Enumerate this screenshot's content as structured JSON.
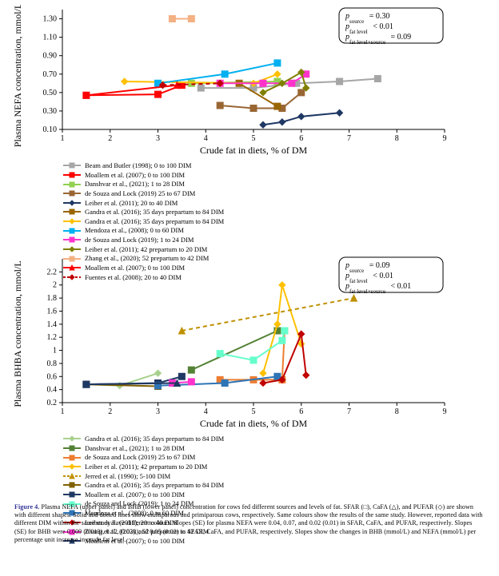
{
  "caption": {
    "lead": "Figure 4.",
    "text": " Plasma NEFA (upper panel) and BHB (lower panel) concentration for cows fed different sources and levels of fat. SFAR (□), CaFA (△), and PUFAR (◇) are shown with different shapes. Solid and dotted lines show multiparous and primiparous cows, respectively. Same colours show the results of the same study. However, reported data with different DIM within the same study have different colours. Slopes (SE) for plasma NEFA were 0.04, 0.07, and 0.02 (0.01) in SFAR, CaFA, and PUFAR, respectively. Slopes (SE) for BHB were 0.009 (0.013), 0.12 (0.03), and 0.05 (0.02) in SFAR, CaFA, and PUFAR, respectively. Slopes show the changes in BHB (mmol/L) and NEFA (mmol/L) per percentage unit increase in crude fat level."
  },
  "global": {
    "xlabel": "Crude fat in diets, % of DM",
    "xlabel_fontsize": 12,
    "tick_fontsize": 10,
    "axis_color": "#000000",
    "text_color": "#000000"
  },
  "panel_top": {
    "type": "line+marker",
    "ylabel": "Plasma NEFA concentration, mmol/L",
    "xlim": [
      1,
      9
    ],
    "ylim": [
      0.1,
      1.4
    ],
    "xticks": [
      1,
      2,
      3,
      4,
      5,
      6,
      7,
      8,
      9
    ],
    "yticks": [
      0.1,
      0.3,
      0.5,
      0.7,
      0.9,
      1.1,
      1.3
    ],
    "ytick_labels": [
      "0.10",
      "0.30",
      "0.50",
      "0.70",
      "0.90",
      "1.10",
      "1.30"
    ],
    "statbox": {
      "lines": [
        {
          "label_html": "<i>p</i><sub>source</sub>",
          "value": "= 0.30"
        },
        {
          "label_html": "<i>p</i><sub>fat level</sub>",
          "value": "< 0.01"
        },
        {
          "label_html": "<i>p</i><sub>fat level×source</sub>",
          "value": "= 0.09"
        }
      ],
      "border_color": "#000000",
      "bg_color": "#ffffff",
      "border_radius": 8
    },
    "series": [
      {
        "label": "Beam and Butler (1998); 0 to 100 DIM",
        "color": "#a6a6a6",
        "marker": "square",
        "dash": "solid",
        "points": [
          [
            3.9,
            0.55
          ],
          [
            5.0,
            0.55
          ],
          [
            5.9,
            0.6
          ],
          [
            6.8,
            0.62
          ],
          [
            7.6,
            0.65
          ]
        ]
      },
      {
        "label": "Moallem et al. (2007); 0 to 100 DIM",
        "color": "#ff0000",
        "marker": "square",
        "dash": "solid",
        "points": [
          [
            1.5,
            0.47
          ],
          [
            3.0,
            0.48
          ],
          [
            3.5,
            0.58
          ]
        ]
      },
      {
        "label": "Danshvar et al., (2021); 1 to 28 DIM",
        "color": "#92d050",
        "marker": "square",
        "dash": "solid",
        "points": [
          [
            3.7,
            0.6
          ],
          [
            5.5,
            0.62
          ]
        ]
      },
      {
        "label": "de Souza and Lock (2019) 25 to 67 DIM",
        "color": "#996633",
        "marker": "square",
        "dash": "solid",
        "points": [
          [
            4.3,
            0.36
          ],
          [
            5.0,
            0.33
          ],
          [
            5.6,
            0.33
          ],
          [
            6.0,
            0.5
          ]
        ]
      },
      {
        "label": "Leiber et al. (2011); 20 to 40 DIM",
        "color": "#1f3864",
        "marker": "diamond",
        "dash": "solid",
        "points": [
          [
            5.2,
            0.15
          ],
          [
            5.6,
            0.18
          ],
          [
            6.0,
            0.24
          ],
          [
            6.8,
            0.28
          ]
        ]
      },
      {
        "label": "Gandra et al. (2016); 35 days prepartum to 84 DIM",
        "color": "#996600",
        "marker": "square",
        "dash": "solid",
        "points": [
          [
            4.7,
            0.6
          ],
          [
            5.5,
            0.35
          ]
        ]
      },
      {
        "label": "Gandra et al. (2016); 35 days prepartum to 84 DIM",
        "color": "#ffc000",
        "marker": "diamond",
        "dash": "solid",
        "points": [
          [
            2.3,
            0.62
          ],
          [
            5.0,
            0.6
          ],
          [
            5.5,
            0.7
          ]
        ]
      },
      {
        "label": "Mendoza et al., (2008); 0 to 60 DIM",
        "color": "#00b0f0",
        "marker": "square",
        "dash": "solid",
        "points": [
          [
            3.0,
            0.6
          ],
          [
            4.4,
            0.7
          ],
          [
            5.5,
            0.82
          ]
        ]
      },
      {
        "label": "de Souza and Lock (2019); 1 to 24 DIM",
        "color": "#ff33cc",
        "marker": "square",
        "dash": "solid",
        "points": [
          [
            4.3,
            0.6
          ],
          [
            5.2,
            0.6
          ],
          [
            5.8,
            0.6
          ],
          [
            6.1,
            0.7
          ]
        ]
      },
      {
        "label": "Leiber et al. (2011); 42 prepartum to 20 DIM",
        "color": "#808000",
        "marker": "diamond",
        "dash": "solid",
        "points": [
          [
            5.2,
            0.5
          ],
          [
            5.6,
            0.6
          ],
          [
            6.0,
            0.72
          ],
          [
            6.1,
            0.55
          ]
        ]
      },
      {
        "label": "Zhang et al., (2020); 52 prepartum to 42 DIM",
        "color": "#f4b183",
        "marker": "square",
        "dash": "solid",
        "points": [
          [
            3.3,
            1.3
          ],
          [
            3.7,
            1.3
          ]
        ]
      },
      {
        "label": "Moallem et al. (2007); 0 to 100 DIM",
        "color": "#ff0000",
        "marker": "triangle",
        "dash": "solid",
        "points": [
          [
            1.5,
            0.47
          ],
          [
            3.4,
            0.58
          ]
        ]
      },
      {
        "label": "Fuentes et al. (2008); 20 to 40 DIM",
        "color": "#c00000",
        "marker": "diamond",
        "dash": "dashed",
        "points": [
          [
            3.1,
            0.58
          ],
          [
            4.3,
            0.6
          ]
        ]
      }
    ],
    "plot_area_bg": "#ffffff",
    "legend_columns": 2
  },
  "panel_bottom": {
    "type": "line+marker",
    "ylabel": "Plasma BHBA concentration, mmol/L",
    "xlim": [
      1,
      9
    ],
    "ylim": [
      0.2,
      2.4
    ],
    "xticks": [
      1,
      2,
      3,
      4,
      5,
      6,
      7,
      8,
      9
    ],
    "yticks": [
      0.2,
      0.4,
      0.6,
      0.8,
      1.0,
      1.2,
      1.4,
      1.6,
      1.8,
      2.0,
      2.2
    ],
    "ytick_labels": [
      "0.2",
      "0.4",
      "0.6",
      "0.8",
      "1",
      "1.2",
      "1.4",
      "1.6",
      "1.8",
      "2",
      "2.2"
    ],
    "statbox": {
      "lines": [
        {
          "label_html": "<i>p</i><sub>source</sub>",
          "value": "= 0.09"
        },
        {
          "label_html": "<i>p</i><sub>fat level</sub>",
          "value": "< 0.01"
        },
        {
          "label_html": "<i>p</i><sub>fat level×source</sub>",
          "value": "< 0.01"
        }
      ],
      "border_color": "#000000",
      "bg_color": "#ffffff",
      "border_radius": 8
    },
    "series": [
      {
        "label": "Gandra et al. (2016); 35 days prepartum to 84 DIM",
        "color": "#a9d18e",
        "marker": "diamond",
        "dash": "solid",
        "points": [
          [
            1.5,
            0.48
          ],
          [
            2.2,
            0.46
          ],
          [
            3.0,
            0.65
          ]
        ]
      },
      {
        "label": "Danshvar et al., (2021); 1 to 28 DIM",
        "color": "#548235",
        "marker": "square",
        "dash": "solid",
        "points": [
          [
            3.7,
            0.7
          ],
          [
            5.5,
            1.3
          ]
        ]
      },
      {
        "label": "de Souza and Lock (2019) 25 to 67 DIM",
        "color": "#ed7d31",
        "marker": "square",
        "dash": "solid",
        "points": [
          [
            4.3,
            0.55
          ],
          [
            5.0,
            0.55
          ],
          [
            5.6,
            0.55
          ],
          [
            5.65,
            1.3
          ]
        ]
      },
      {
        "label": "Leiber et al. (2011); 42 prepartum to 20 DIM",
        "color": "#ffc000",
        "marker": "diamond",
        "dash": "solid",
        "points": [
          [
            5.2,
            0.65
          ],
          [
            5.5,
            1.4
          ],
          [
            5.6,
            2.0
          ],
          [
            6.0,
            1.1
          ]
        ]
      },
      {
        "label": "Jerred et al. (1990); 5-100 DIM",
        "color": "#bf9000",
        "marker": "triangle",
        "dash": "dashed",
        "points": [
          [
            3.5,
            1.3
          ],
          [
            7.1,
            1.8
          ]
        ]
      },
      {
        "label": "Gandra et al. (2016); 35 days prepartum to 84 DIM",
        "color": "#7f6000",
        "marker": "square",
        "dash": "solid",
        "points": [
          [
            1.5,
            0.48
          ],
          [
            3.0,
            0.45
          ]
        ]
      },
      {
        "label": "Moallem et al. (2007); 0 to 100 DIM",
        "color": "#1f3864",
        "marker": "square",
        "dash": "solid",
        "points": [
          [
            1.5,
            0.48
          ],
          [
            3.0,
            0.5
          ],
          [
            3.5,
            0.6
          ]
        ]
      },
      {
        "label": "de Souza and Lock (2019); 1 to 24 DIM",
        "color": "#66ffcc",
        "marker": "square",
        "dash": "solid",
        "points": [
          [
            4.3,
            0.95
          ],
          [
            5.0,
            0.85
          ],
          [
            5.6,
            1.15
          ],
          [
            5.65,
            1.3
          ]
        ]
      },
      {
        "label": "Mendoza et al., (2008); 0 to 60 DIM",
        "color": "#2e75b6",
        "marker": "square",
        "dash": "solid",
        "points": [
          [
            3.0,
            0.46
          ],
          [
            4.4,
            0.5
          ],
          [
            5.5,
            0.6
          ]
        ]
      },
      {
        "label": "Leiber et al. (2011); 20 to 40 DIM",
        "color": "#c00000",
        "marker": "diamond",
        "dash": "solid",
        "points": [
          [
            5.2,
            0.5
          ],
          [
            5.6,
            0.55
          ],
          [
            6.0,
            1.25
          ],
          [
            6.1,
            0.62
          ]
        ]
      },
      {
        "label": "Zhang et al., (2020); 52 prepartum to 42 DIM",
        "color": "#ff33cc",
        "marker": "square",
        "dash": "solid",
        "points": [
          [
            3.3,
            0.5
          ],
          [
            3.7,
            0.52
          ]
        ]
      },
      {
        "label": "Moallem et al. (2007); 0 to 100 DIM",
        "color": "#1f3864",
        "marker": "triangle",
        "dash": "solid",
        "points": [
          [
            1.5,
            0.48
          ],
          [
            3.4,
            0.5
          ]
        ]
      }
    ],
    "plot_area_bg": "#ffffff",
    "legend_columns": 2
  }
}
